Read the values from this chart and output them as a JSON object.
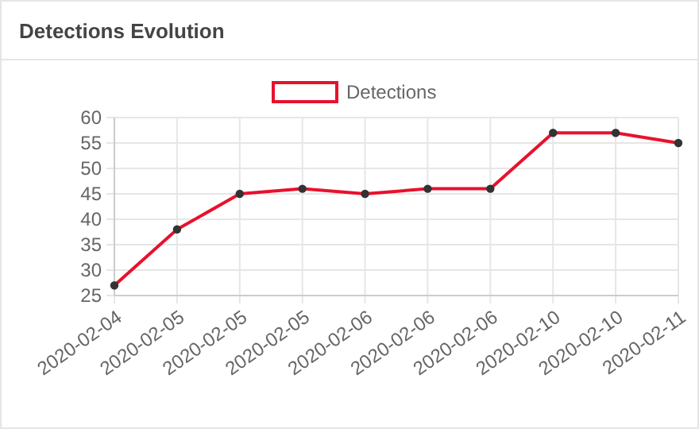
{
  "chart_data": {
    "type": "line",
    "title": "Detections Evolution",
    "categories": [
      "2020-02-04",
      "2020-02-05",
      "2020-02-05",
      "2020-02-05",
      "2020-02-06",
      "2020-02-06",
      "2020-02-06",
      "2020-02-10",
      "2020-02-10",
      "2020-02-11"
    ],
    "series": [
      {
        "name": "Detections",
        "color": "#e8112d",
        "values": [
          27,
          38,
          45,
          46,
          45,
          46,
          46,
          57,
          57,
          55
        ]
      }
    ],
    "ylim": [
      25,
      60
    ],
    "yticks": [
      25,
      30,
      35,
      40,
      45,
      50,
      55,
      60
    ],
    "grid": true,
    "legend": "top",
    "marker": "circle",
    "line_style": "solid"
  }
}
